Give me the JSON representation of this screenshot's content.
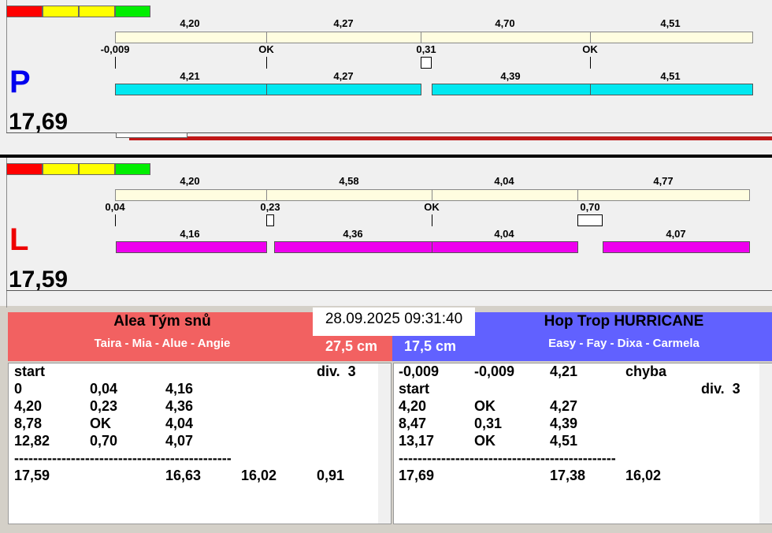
{
  "lanes": [
    {
      "letter": "P",
      "total": "17,69",
      "top_segments": [
        "4,20",
        "4,27",
        "4,70",
        "4,51"
      ],
      "markers": [
        "-0,009",
        "OK",
        "0,31",
        "OK"
      ],
      "bottom_segments": [
        "4,21",
        "4,27",
        "4,39",
        "4,51"
      ]
    },
    {
      "letter": "L",
      "total": "17,59",
      "top_segments": [
        "4,20",
        "4,58",
        "4,04",
        "4,77"
      ],
      "markers": [
        "0,04",
        "0,23",
        "OK",
        "0,70"
      ],
      "bottom_segments": [
        "4,16",
        "4,36",
        "4,04",
        "4,07"
      ]
    }
  ],
  "timestamp": "28.09.2025 09:31:40",
  "teams": [
    {
      "name": "Alea Tým snů",
      "members": "Taira - Mia - Alue - Angie",
      "height": "27,5 cm",
      "rows": [
        [
          "start",
          null,
          null,
          null,
          "div.  3"
        ],
        [
          "0",
          "0,04",
          "4,16"
        ],
        [
          "4,20",
          "0,23",
          "4,36"
        ],
        [
          "8,78",
          "OK",
          "4,04"
        ],
        [
          "12,82",
          "0,70",
          "4,07"
        ]
      ],
      "separator": "----------------------------------------------",
      "summary": [
        "17,59",
        null,
        "16,63",
        "16,02",
        "0,91"
      ]
    },
    {
      "name": "Hop Trop HURRICANE",
      "members": "Easy - Fay - Dixa - Carmela",
      "height": "17,5 cm",
      "rows": [
        [
          "-0,009",
          "-0,009",
          "4,21",
          "chyba"
        ],
        [
          "start",
          null,
          null,
          null,
          "div.  3"
        ],
        [
          "4,20",
          "OK",
          "4,27"
        ],
        [
          "8,47",
          "0,31",
          "4,39"
        ],
        [
          "13,17",
          "OK",
          "4,51"
        ]
      ],
      "separator": "----------------------------------------------",
      "summary": [
        "17,69",
        null,
        "17,38",
        "16,02"
      ]
    }
  ]
}
